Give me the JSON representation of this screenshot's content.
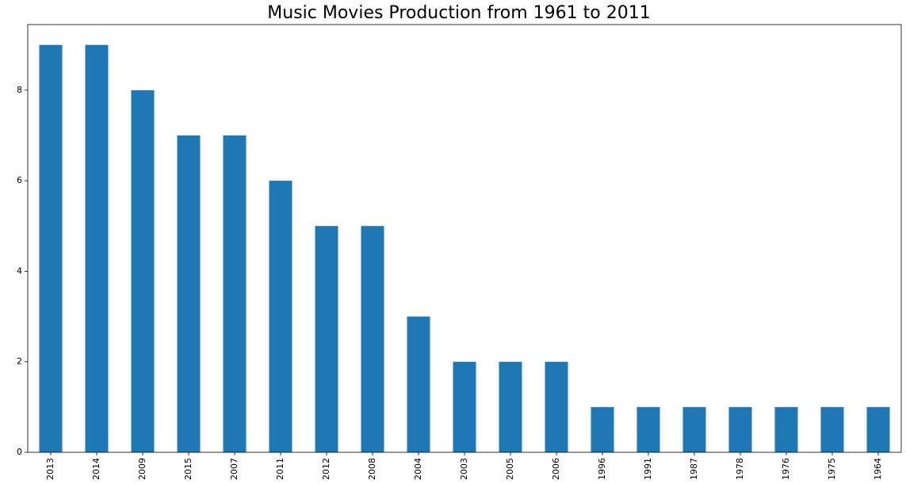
{
  "chart_data": {
    "type": "bar",
    "title": "Music Movies Production from 1961 to 2011",
    "xlabel": "",
    "ylabel": "",
    "categories": [
      "2013",
      "2014",
      "2009",
      "2015",
      "2007",
      "2011",
      "2012",
      "2008",
      "2004",
      "2003",
      "2005",
      "2006",
      "1996",
      "1991",
      "1987",
      "1978",
      "1976",
      "1975",
      "1964"
    ],
    "values": [
      9,
      9,
      8,
      7,
      7,
      6,
      5,
      5,
      3,
      2,
      2,
      2,
      1,
      1,
      1,
      1,
      1,
      1,
      1
    ],
    "ylim": [
      0,
      9.45
    ],
    "yticks": [
      0,
      2,
      4,
      6,
      8
    ],
    "xtick_rotation": "vertical",
    "grid": false,
    "legend": "none",
    "colors": {
      "bar": "#1f77b4",
      "background": "#ffffff",
      "axis": "#000000"
    }
  }
}
